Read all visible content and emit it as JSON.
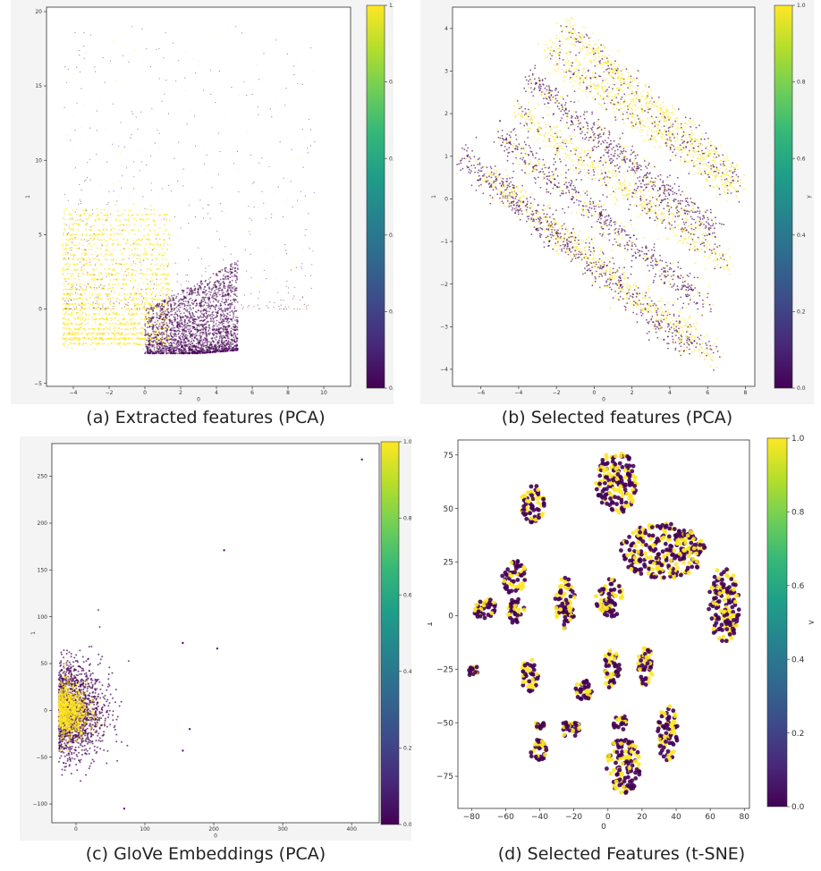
{
  "figure": {
    "captions": [
      "(a) Extracted features (PCA)",
      "(b) Selected features (PCA)",
      "(c) GloVe Embeddings (PCA)",
      "(d) Selected Features (t-SNE)"
    ]
  },
  "colors": {
    "low": "#440154",
    "high": "#fde725",
    "panel_bg": "#f4f4f4"
  },
  "chart_data": [
    {
      "type": "scatter",
      "title": "",
      "xlabel": "0",
      "ylabel": "1",
      "colorbar_label": "y",
      "xlim": [
        -5.5,
        11.5
      ],
      "ylim": [
        -5.2,
        20.3
      ],
      "xticks": [
        -4,
        -2,
        0,
        2,
        4,
        6,
        8,
        10
      ],
      "yticks": [
        -5,
        0,
        5,
        10,
        15,
        20
      ],
      "colorbar_ticks": [
        "0.0",
        "0.2",
        "0.4",
        "0.6",
        "0.8",
        "1.0"
      ],
      "clusters": [
        {
          "label": 1,
          "x": [
            -5,
            2
          ],
          "y": [
            -2.5,
            7.5
          ],
          "density": "high"
        },
        {
          "label": 0,
          "x": [
            0,
            6
          ],
          "y": [
            -3,
            5
          ],
          "density": "high"
        },
        {
          "label": 0,
          "x": [
            -4,
            11
          ],
          "y": [
            3,
            19
          ],
          "density": "sparse"
        }
      ]
    },
    {
      "type": "scatter",
      "title": "",
      "xlabel": "0",
      "ylabel": "1",
      "colorbar_label": "y",
      "xlim": [
        -7.5,
        8.5
      ],
      "ylim": [
        -4.4,
        4.5
      ],
      "xticks": [
        -6,
        -4,
        -2,
        0,
        2,
        4,
        6,
        8
      ],
      "yticks": [
        -4,
        -3,
        -2,
        -1,
        0,
        1,
        2,
        3,
        4
      ],
      "colorbar_ticks": [
        "0.0",
        "0.2",
        "0.4",
        "0.6",
        "0.8",
        "1.0"
      ],
      "bands": [
        {
          "label": 0,
          "from": [
            -7,
            1
          ],
          "to": [
            5,
            -3.5
          ]
        },
        {
          "label": 1,
          "from": [
            -5.5,
            0.5
          ],
          "to": [
            6.5,
            -3.7
          ]
        },
        {
          "label": 0,
          "from": [
            -5,
            1.5
          ],
          "to": [
            6,
            -2.5
          ]
        },
        {
          "label": 1,
          "from": [
            -4,
            2
          ],
          "to": [
            7,
            -1.5
          ]
        },
        {
          "label": 0,
          "from": [
            -3.5,
            2.8
          ],
          "to": [
            6.5,
            -0.8
          ]
        },
        {
          "label": 1,
          "from": [
            -2.5,
            3.5
          ],
          "to": [
            7.5,
            0.2
          ]
        },
        {
          "label": 1,
          "from": [
            -1.5,
            4
          ],
          "to": [
            7.5,
            0.5
          ]
        }
      ]
    },
    {
      "type": "scatter",
      "title": "",
      "xlabel": "0",
      "ylabel": "1",
      "colorbar_label": "y",
      "xlim": [
        -35,
        440
      ],
      "ylim": [
        -120,
        285
      ],
      "xticks": [
        0,
        100,
        200,
        300,
        400
      ],
      "yticks": [
        -100,
        -50,
        0,
        50,
        100,
        150,
        200,
        250
      ],
      "colorbar_ticks": [
        "0.0",
        "0.2",
        "0.4",
        "0.6",
        "0.8",
        "1.0"
      ],
      "clusters": [
        {
          "label": 1,
          "center": [
            0,
            0
          ],
          "radius": [
            35,
            30
          ]
        },
        {
          "label": 0,
          "center": [
            25,
            0
          ],
          "radius": [
            65,
            60
          ]
        }
      ],
      "outliers": [
        [
          415,
          268
        ],
        [
          215,
          171
        ],
        [
          205,
          66
        ],
        [
          155,
          72
        ],
        [
          155,
          -43
        ],
        [
          165,
          -20
        ],
        [
          70,
          -105
        ]
      ]
    },
    {
      "type": "scatter",
      "title": "",
      "xlabel": "0",
      "ylabel": "1",
      "colorbar_label": "y",
      "xlim": [
        -88,
        83
      ],
      "ylim": [
        -90,
        82
      ],
      "xticks": [
        -80,
        -60,
        -40,
        -20,
        0,
        20,
        40,
        60,
        80
      ],
      "yticks": [
        -75,
        -50,
        -25,
        0,
        25,
        50,
        75
      ],
      "colorbar_ticks": [
        "0.0",
        "0.2",
        "0.4",
        "0.6",
        "0.8",
        "1.0"
      ],
      "clusters": [
        {
          "cx": 5,
          "cy": 62,
          "rx": 12,
          "ry": 15
        },
        {
          "cx": -44,
          "cy": 52,
          "rx": 7,
          "ry": 9
        },
        {
          "cx": 32,
          "cy": 30,
          "rx": 25,
          "ry": 13
        },
        {
          "cx": 68,
          "cy": 5,
          "rx": 9,
          "ry": 18
        },
        {
          "cx": -55,
          "cy": 18,
          "rx": 7,
          "ry": 8
        },
        {
          "cx": -72,
          "cy": 3,
          "rx": 7,
          "ry": 5
        },
        {
          "cx": -54,
          "cy": 2,
          "rx": 5,
          "ry": 6
        },
        {
          "cx": -25,
          "cy": 6,
          "rx": 6,
          "ry": 12
        },
        {
          "cx": 1,
          "cy": 8,
          "rx": 8,
          "ry": 9
        },
        {
          "cx": -46,
          "cy": -28,
          "rx": 5,
          "ry": 8
        },
        {
          "cx": -79,
          "cy": -26,
          "rx": 3,
          "ry": 3
        },
        {
          "cx": 2,
          "cy": -25,
          "rx": 5,
          "ry": 9
        },
        {
          "cx": 22,
          "cy": -24,
          "rx": 5,
          "ry": 9
        },
        {
          "cx": -14,
          "cy": -35,
          "rx": 5,
          "ry": 5
        },
        {
          "cx": 35,
          "cy": -55,
          "rx": 6,
          "ry": 13
        },
        {
          "cx": -22,
          "cy": -53,
          "rx": 6,
          "ry": 4
        },
        {
          "cx": 9,
          "cy": -70,
          "rx": 10,
          "ry": 13
        },
        {
          "cx": -41,
          "cy": -63,
          "rx": 5,
          "ry": 5
        },
        {
          "cx": -40,
          "cy": -51,
          "rx": 3,
          "ry": 2
        },
        {
          "cx": 7,
          "cy": -50,
          "rx": 4,
          "ry": 4
        }
      ]
    }
  ]
}
